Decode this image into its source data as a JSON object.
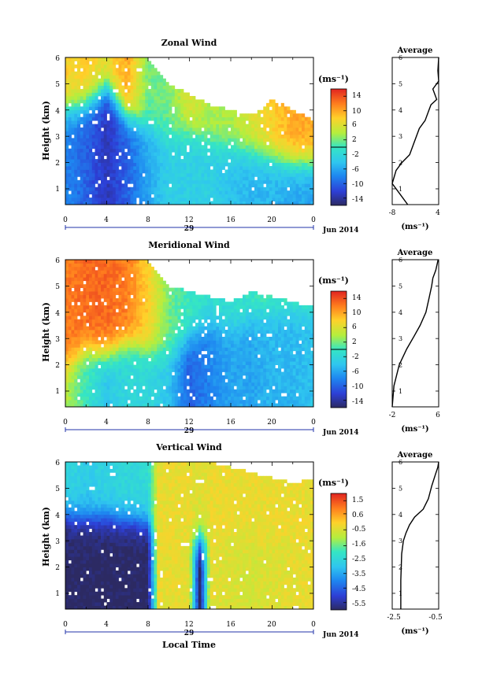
{
  "panels": [
    {
      "title": "Zonal Wind",
      "ylabel": "Height (km)",
      "xticks": [
        "0",
        "4",
        "8",
        "12",
        "16",
        "20",
        "0"
      ],
      "yticks": [
        "1",
        "2",
        "3",
        "4",
        "5",
        "6"
      ],
      "date_day": "29",
      "date_month": "Jun 2014",
      "colorbar_unit": "(ms⁻¹)",
      "colorbar_ticks": [
        "14",
        "10",
        "6",
        "2",
        "-2",
        "-6",
        "-10",
        "-14"
      ],
      "avg_title": "Average",
      "avg_xticks": [
        "-8",
        "4"
      ],
      "avg_unit": "(ms⁻¹)"
    },
    {
      "title": "Meridional Wind",
      "ylabel": "Height (km)",
      "xticks": [
        "0",
        "4",
        "8",
        "12",
        "16",
        "20",
        "0"
      ],
      "yticks": [
        "1",
        "2",
        "3",
        "4",
        "5",
        "6"
      ],
      "date_day": "29",
      "date_month": "Jun 2014",
      "colorbar_unit": "(ms⁻¹)",
      "colorbar_ticks": [
        "14",
        "10",
        "6",
        "2",
        "-2",
        "-6",
        "-10",
        "-14"
      ],
      "avg_title": "Average",
      "avg_xticks": [
        "-2",
        "6"
      ],
      "avg_unit": "(ms⁻¹)"
    },
    {
      "title": "Vertical Wind",
      "ylabel": "Height (km)",
      "xticks": [
        "0",
        "4",
        "8",
        "12",
        "16",
        "20",
        "0"
      ],
      "yticks": [
        "1",
        "2",
        "3",
        "4",
        "5",
        "6"
      ],
      "date_day": "29",
      "date_month": "Jun 2014",
      "xlabel": "Local Time",
      "colorbar_unit": "(ms⁻¹)",
      "colorbar_ticks": [
        "1.5",
        "0.6",
        "-0.5",
        "-1.6",
        "-2.5",
        "-3.5",
        "-4.5",
        "-5.5"
      ],
      "avg_title": "Average",
      "avg_xticks": [
        "-2.5",
        "-0.5"
      ],
      "avg_unit": "(ms⁻¹)"
    }
  ],
  "chart_data": [
    {
      "type": "heatmap",
      "title": "Zonal Wind",
      "xlabel": "",
      "ylabel": "Height (km)",
      "xlim": [
        0,
        24
      ],
      "ylim": [
        0.4,
        6
      ],
      "clim": [
        -16,
        16
      ],
      "columns": [
        {
          "x": 0,
          "low": -8,
          "high": 8,
          "split": 4.0,
          "top": 6.0
        },
        {
          "x": 2,
          "low": -10,
          "high": 8,
          "split": 4.2,
          "top": 6.0
        },
        {
          "x": 4,
          "low": -13,
          "high": 7,
          "split": 4.8,
          "top": 6.0
        },
        {
          "x": 6,
          "low": -10,
          "high": 10,
          "split": 3.8,
          "top": 6.0
        },
        {
          "x": 8,
          "low": -6,
          "high": 2,
          "split": 3.4,
          "top": 6.0
        },
        {
          "x": 10,
          "low": -3,
          "high": 2,
          "split": 3.0,
          "top": 5.0
        },
        {
          "x": 12,
          "low": -3,
          "high": 6,
          "split": 3.2,
          "top": 4.6
        },
        {
          "x": 14,
          "low": -3,
          "high": 4,
          "split": 2.8,
          "top": 4.2
        },
        {
          "x": 16,
          "low": -4,
          "high": 4,
          "split": 2.6,
          "top": 4.0
        },
        {
          "x": 18,
          "low": -5,
          "high": 6,
          "split": 2.4,
          "top": 3.8
        },
        {
          "x": 20,
          "low": -5,
          "high": 8,
          "split": 2.2,
          "top": 4.4
        },
        {
          "x": 22,
          "low": -6,
          "high": 10,
          "split": 2.0,
          "top": 4.0
        },
        {
          "x": 24,
          "low": -6,
          "high": 10,
          "split": 2.0,
          "top": 3.6
        }
      ],
      "colorbar": {
        "label": "(ms⁻¹)",
        "ticks": [
          14,
          10,
          6,
          2,
          -2,
          -6,
          -10,
          -14
        ],
        "range": [
          -16,
          16
        ]
      }
    },
    {
      "type": "heatmap",
      "title": "Meridional Wind",
      "xlabel": "",
      "ylabel": "Height (km)",
      "xlim": [
        0,
        24
      ],
      "ylim": [
        0.4,
        6
      ],
      "clim": [
        -16,
        16
      ],
      "columns": [
        {
          "x": 0,
          "low": 4,
          "high": 12,
          "split": 2.0,
          "top": 6.0
        },
        {
          "x": 2,
          "low": 0,
          "high": 13,
          "split": 2.6,
          "top": 6.0
        },
        {
          "x": 4,
          "low": -4,
          "high": 13,
          "split": 2.4,
          "top": 6.0
        },
        {
          "x": 6,
          "low": -2,
          "high": 12,
          "split": 2.8,
          "top": 6.0
        },
        {
          "x": 8,
          "low": -2,
          "high": 8,
          "split": 2.6,
          "top": 6.0
        },
        {
          "x": 10,
          "low": -4,
          "high": 2,
          "split": 2.4,
          "top": 5.0
        },
        {
          "x": 12,
          "low": -10,
          "high": 0,
          "split": 3.0,
          "top": 4.8
        },
        {
          "x": 14,
          "low": -8,
          "high": -1,
          "split": 3.6,
          "top": 4.6
        },
        {
          "x": 16,
          "low": -6,
          "high": -1,
          "split": 3.4,
          "top": 4.4
        },
        {
          "x": 18,
          "low": -6,
          "high": 0,
          "split": 3.8,
          "top": 4.8
        },
        {
          "x": 20,
          "low": -5,
          "high": 1,
          "split": 4.0,
          "top": 4.6
        },
        {
          "x": 22,
          "low": -5,
          "high": 2,
          "split": 4.2,
          "top": 4.4
        },
        {
          "x": 24,
          "low": -4,
          "high": 4,
          "split": 4.4,
          "top": 4.2
        }
      ],
      "colorbar": {
        "label": "(ms⁻¹)",
        "ticks": [
          14,
          10,
          6,
          2,
          -2,
          -6,
          -10,
          -14
        ],
        "range": [
          -16,
          16
        ]
      }
    },
    {
      "type": "heatmap",
      "title": "Vertical Wind",
      "xlabel": "Local Time",
      "ylabel": "Height (km)",
      "xlim": [
        0,
        24
      ],
      "ylim": [
        0.4,
        6
      ],
      "clim": [
        -6,
        2
      ],
      "columns": [
        {
          "x": 0,
          "low": -6,
          "high": -2.5,
          "split": 4.0,
          "top": 6.0
        },
        {
          "x": 2,
          "low": -6,
          "high": -2.8,
          "split": 3.9,
          "top": 6.0
        },
        {
          "x": 4,
          "low": -6,
          "high": -2.6,
          "split": 3.9,
          "top": 6.0
        },
        {
          "x": 6,
          "low": -6,
          "high": -2.5,
          "split": 3.8,
          "top": 6.0
        },
        {
          "x": 8,
          "low": -6,
          "high": -2.4,
          "split": 3.7,
          "top": 6.0
        },
        {
          "x": 9,
          "low": -0.3,
          "high": -0.3,
          "split": 3.0,
          "top": 6.0
        },
        {
          "x": 12,
          "low": -0.4,
          "high": -0.3,
          "split": 3.0,
          "top": 6.0
        },
        {
          "x": 13,
          "low": -6,
          "high": -0.5,
          "split": 3.0,
          "top": 6.0
        },
        {
          "x": 14,
          "low": -0.4,
          "high": -0.3,
          "split": 3.0,
          "top": 6.0
        },
        {
          "x": 18,
          "low": -0.6,
          "high": -0.3,
          "split": 3.0,
          "top": 5.6
        },
        {
          "x": 22,
          "low": -0.4,
          "high": -0.3,
          "split": 3.0,
          "top": 5.2
        },
        {
          "x": 24,
          "low": -0.3,
          "high": -0.3,
          "split": 3.0,
          "top": 5.4
        }
      ],
      "colorbar": {
        "label": "(ms⁻¹)",
        "ticks": [
          1.5,
          0.6,
          -0.5,
          -1.6,
          -2.5,
          -3.5,
          -4.5,
          -5.5
        ],
        "range": [
          -6,
          2
        ]
      }
    },
    {
      "type": "line",
      "title": "Average",
      "xlabel": "(ms⁻¹)",
      "ylabel": "",
      "xlim": [
        -8,
        4
      ],
      "ylim": [
        0.4,
        6
      ],
      "x": [
        -4.0,
        -8.0,
        -7.0,
        -5.5,
        -3.5,
        -2.5,
        -1.0,
        0.5,
        1.5,
        2.0,
        3.5,
        2.5,
        4.0,
        3.8,
        4.0
      ],
      "y": [
        0.4,
        1.2,
        1.7,
        2.0,
        2.3,
        2.7,
        3.3,
        3.6,
        4.0,
        4.2,
        4.4,
        4.8,
        5.1,
        5.5,
        6.0
      ]
    },
    {
      "type": "line",
      "title": "Average",
      "xlabel": "(ms⁻¹)",
      "ylabel": "",
      "xlim": [
        -2,
        6
      ],
      "ylim": [
        0.4,
        6
      ],
      "x": [
        -2.0,
        -1.7,
        -0.8,
        0.5,
        1.8,
        2.8,
        3.8,
        4.3,
        4.8,
        5.0,
        5.5,
        5.7,
        5.9
      ],
      "y": [
        0.4,
        1.2,
        2.0,
        2.6,
        3.1,
        3.5,
        4.0,
        4.5,
        5.0,
        5.3,
        5.6,
        5.8,
        6.0
      ]
    },
    {
      "type": "line",
      "title": "Average",
      "xlabel": "(ms⁻¹)",
      "ylabel": "",
      "xlim": [
        -3,
        -0.3
      ],
      "ylim": [
        0.4,
        6
      ],
      "x": [
        -2.5,
        -2.5,
        -2.45,
        -2.35,
        -2.2,
        -2.0,
        -1.7,
        -1.2,
        -0.9,
        -0.7,
        -0.5,
        -0.35,
        -0.3
      ],
      "y": [
        0.4,
        1.5,
        2.5,
        3.0,
        3.3,
        3.6,
        3.9,
        4.2,
        4.6,
        5.1,
        5.5,
        5.8,
        6.0
      ]
    }
  ]
}
